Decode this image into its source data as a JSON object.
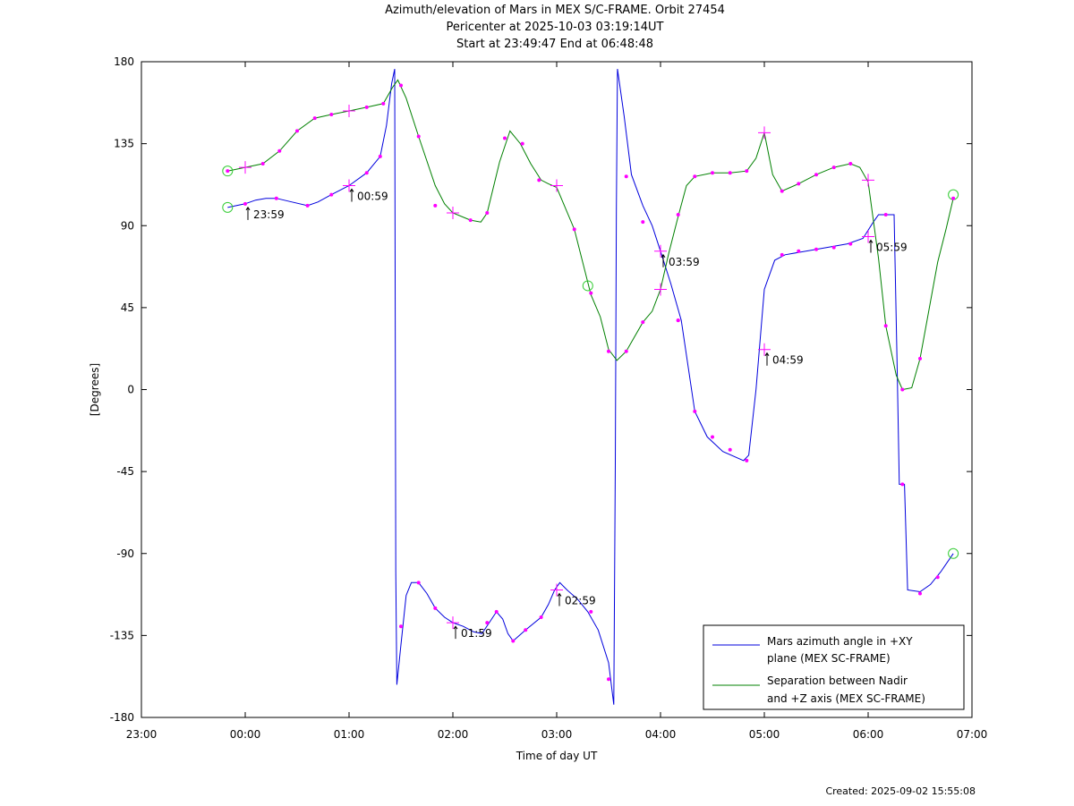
{
  "title": {
    "line1": "Azimuth/elevation of Mars in MEX S/C-FRAME.  Orbit 27454",
    "line2": "Pericenter at 2025-10-03 03:19:14UT",
    "line3": "Start at 23:49:47 End at 06:48:48"
  },
  "created": "Created: 2025-09-02 15:55:08",
  "colors": {
    "azimuth": "#0000dd",
    "separation": "#008000",
    "markers": "#ff00ff",
    "start_end": "#33cc33"
  },
  "chart_data": {
    "type": "line",
    "xlabel": "Time of day UT",
    "ylabel": "[Degrees]",
    "xlim": [
      -1.0,
      7.0
    ],
    "ylim": [
      -180,
      180
    ],
    "x_ticks": [
      {
        "v": -1,
        "label": "23:00"
      },
      {
        "v": 0,
        "label": "00:00"
      },
      {
        "v": 1,
        "label": "01:00"
      },
      {
        "v": 2,
        "label": "02:00"
      },
      {
        "v": 3,
        "label": "03:00"
      },
      {
        "v": 4,
        "label": "04:00"
      },
      {
        "v": 5,
        "label": "05:00"
      },
      {
        "v": 6,
        "label": "06:00"
      },
      {
        "v": 7,
        "label": "07:00"
      }
    ],
    "y_ticks": [
      180,
      135,
      90,
      45,
      0,
      -45,
      -90,
      -135,
      -180
    ],
    "grid": false,
    "legend_position": "bottom-right",
    "series": [
      {
        "name": "Mars azimuth angle in +XY plane (MEX SC-FRAME)",
        "legend_lines": [
          "Mars azimuth angle in +XY",
          "plane (MEX SC-FRAME)"
        ],
        "points": [
          [
            -0.17,
            100
          ],
          [
            0,
            102
          ],
          [
            0.1,
            104
          ],
          [
            0.2,
            105
          ],
          [
            0.3,
            105
          ],
          [
            0.45,
            103
          ],
          [
            0.6,
            101
          ],
          [
            0.7,
            103
          ],
          [
            0.83,
            107
          ],
          [
            1.0,
            112
          ],
          [
            1.17,
            119
          ],
          [
            1.3,
            128
          ],
          [
            1.36,
            145
          ],
          [
            1.41,
            168
          ],
          [
            1.44,
            176
          ],
          [
            1.445,
            40
          ],
          [
            1.45,
            -100
          ],
          [
            1.46,
            -162
          ],
          [
            1.5,
            -140
          ],
          [
            1.55,
            -113
          ],
          [
            1.6,
            -106
          ],
          [
            1.67,
            -106
          ],
          [
            1.75,
            -112
          ],
          [
            1.83,
            -120
          ],
          [
            1.92,
            -125
          ],
          [
            2.0,
            -128
          ],
          [
            2.1,
            -130
          ],
          [
            2.2,
            -133
          ],
          [
            2.28,
            -134
          ],
          [
            2.35,
            -128
          ],
          [
            2.42,
            -122
          ],
          [
            2.48,
            -126
          ],
          [
            2.53,
            -134
          ],
          [
            2.58,
            -138
          ],
          [
            2.7,
            -132
          ],
          [
            2.85,
            -125
          ],
          [
            2.92,
            -118
          ],
          [
            2.98,
            -110
          ],
          [
            3.03,
            -106
          ],
          [
            3.1,
            -110
          ],
          [
            3.2,
            -115
          ],
          [
            3.3,
            -122
          ],
          [
            3.4,
            -132
          ],
          [
            3.5,
            -150
          ],
          [
            3.55,
            -173
          ],
          [
            3.565,
            -40
          ],
          [
            3.575,
            100
          ],
          [
            3.585,
            176
          ],
          [
            3.65,
            150
          ],
          [
            3.72,
            118
          ],
          [
            3.83,
            101
          ],
          [
            3.92,
            90
          ],
          [
            4.0,
            76
          ],
          [
            4.1,
            58
          ],
          [
            4.2,
            38
          ],
          [
            4.33,
            -12
          ],
          [
            4.45,
            -26
          ],
          [
            4.6,
            -34
          ],
          [
            4.8,
            -39
          ],
          [
            4.85,
            -36
          ],
          [
            4.92,
            0
          ],
          [
            5.0,
            55
          ],
          [
            5.1,
            71
          ],
          [
            5.2,
            74
          ],
          [
            5.5,
            77
          ],
          [
            5.8,
            80
          ],
          [
            5.95,
            83
          ],
          [
            6.05,
            92
          ],
          [
            6.1,
            96
          ],
          [
            6.2,
            96
          ],
          [
            6.25,
            96
          ],
          [
            6.28,
            10
          ],
          [
            6.3,
            -52
          ],
          [
            6.35,
            -52
          ],
          [
            6.38,
            -110
          ],
          [
            6.5,
            -111
          ],
          [
            6.6,
            -107
          ],
          [
            6.7,
            -100
          ],
          [
            6.82,
            -90
          ]
        ],
        "markers": [
          [
            0,
            102
          ],
          [
            0.3,
            105
          ],
          [
            0.6,
            101
          ],
          [
            0.83,
            107
          ],
          [
            1.17,
            119
          ],
          [
            1.3,
            128
          ],
          [
            1.5,
            -130
          ],
          [
            1.67,
            -106
          ],
          [
            1.83,
            -120
          ],
          [
            2.33,
            -128
          ],
          [
            2.42,
            -122
          ],
          [
            2.58,
            -138
          ],
          [
            2.7,
            -132
          ],
          [
            2.85,
            -125
          ],
          [
            3.33,
            -122
          ],
          [
            3.5,
            -159
          ],
          [
            3.67,
            117
          ],
          [
            3.83,
            92
          ],
          [
            4.17,
            38
          ],
          [
            4.33,
            -12
          ],
          [
            4.5,
            -26
          ],
          [
            4.67,
            -33
          ],
          [
            4.83,
            -39
          ],
          [
            5.17,
            74
          ],
          [
            5.33,
            76
          ],
          [
            5.5,
            77
          ],
          [
            5.67,
            78
          ],
          [
            5.83,
            80
          ],
          [
            6.17,
            96
          ],
          [
            6.33,
            -52
          ],
          [
            6.5,
            -112
          ],
          [
            6.67,
            -103
          ]
        ],
        "hour_markers": [
          [
            1.0,
            112
          ],
          [
            2.0,
            -128
          ],
          [
            3.0,
            -110
          ],
          [
            4.0,
            76
          ],
          [
            5.0,
            22
          ],
          [
            6.0,
            84
          ]
        ],
        "start_end": [
          [
            -0.17,
            100
          ],
          [
            6.82,
            -90
          ]
        ],
        "annotations": [
          {
            "time": "23:59",
            "x": 0.0,
            "y": 102
          },
          {
            "time": "00:59",
            "x": 1.0,
            "y": 112
          },
          {
            "time": "01:59",
            "x": 2.0,
            "y": -128
          },
          {
            "time": "02:59",
            "x": 3.0,
            "y": -110
          },
          {
            "time": "03:59",
            "x": 4.0,
            "y": 76
          },
          {
            "time": "04:59",
            "x": 5.0,
            "y": 22
          },
          {
            "time": "05:59",
            "x": 6.0,
            "y": 84
          }
        ]
      },
      {
        "name": "Separation between Nadir and +Z axis (MEX SC-FRAME)",
        "legend_lines": [
          "Separation between Nadir",
          "and +Z axis (MEX SC-FRAME)"
        ],
        "points": [
          [
            -0.17,
            120
          ],
          [
            0,
            122
          ],
          [
            0.17,
            124
          ],
          [
            0.33,
            131
          ],
          [
            0.5,
            142
          ],
          [
            0.67,
            149
          ],
          [
            0.83,
            151
          ],
          [
            1.0,
            153
          ],
          [
            1.17,
            155
          ],
          [
            1.33,
            157
          ],
          [
            1.42,
            166
          ],
          [
            1.47,
            170
          ],
          [
            1.55,
            160
          ],
          [
            1.67,
            139
          ],
          [
            1.83,
            112
          ],
          [
            1.92,
            102
          ],
          [
            2.0,
            97
          ],
          [
            2.17,
            93
          ],
          [
            2.27,
            92
          ],
          [
            2.33,
            97
          ],
          [
            2.45,
            125
          ],
          [
            2.55,
            142
          ],
          [
            2.65,
            135
          ],
          [
            2.75,
            124
          ],
          [
            2.85,
            115
          ],
          [
            2.92,
            113
          ],
          [
            3.0,
            111
          ],
          [
            3.17,
            88
          ],
          [
            3.33,
            52
          ],
          [
            3.42,
            40
          ],
          [
            3.5,
            22
          ],
          [
            3.58,
            16
          ],
          [
            3.67,
            21
          ],
          [
            3.83,
            37
          ],
          [
            3.92,
            43
          ],
          [
            4.0,
            55
          ],
          [
            4.08,
            75
          ],
          [
            4.17,
            95
          ],
          [
            4.25,
            112
          ],
          [
            4.33,
            117
          ],
          [
            4.5,
            119
          ],
          [
            4.67,
            119
          ],
          [
            4.83,
            120
          ],
          [
            4.92,
            127
          ],
          [
            5.0,
            141
          ],
          [
            5.08,
            118
          ],
          [
            5.17,
            109
          ],
          [
            5.33,
            113
          ],
          [
            5.5,
            118
          ],
          [
            5.67,
            122
          ],
          [
            5.83,
            124
          ],
          [
            5.92,
            122
          ],
          [
            6.0,
            114
          ],
          [
            6.1,
            72
          ],
          [
            6.17,
            35
          ],
          [
            6.27,
            8
          ],
          [
            6.33,
            0
          ],
          [
            6.42,
            1
          ],
          [
            6.5,
            17
          ],
          [
            6.67,
            70
          ],
          [
            6.75,
            88
          ],
          [
            6.82,
            105
          ]
        ],
        "markers": [
          [
            -0.17,
            120
          ],
          [
            0.17,
            124
          ],
          [
            0.33,
            131
          ],
          [
            0.5,
            142
          ],
          [
            0.67,
            149
          ],
          [
            0.83,
            151
          ],
          [
            1.17,
            155
          ],
          [
            1.33,
            157
          ],
          [
            1.5,
            167
          ],
          [
            1.67,
            139
          ],
          [
            1.83,
            101
          ],
          [
            2.17,
            93
          ],
          [
            2.33,
            97
          ],
          [
            2.5,
            138
          ],
          [
            2.67,
            135
          ],
          [
            2.83,
            115
          ],
          [
            3.17,
            88
          ],
          [
            3.33,
            53
          ],
          [
            3.5,
            21
          ],
          [
            3.67,
            21
          ],
          [
            3.83,
            37
          ],
          [
            4.17,
            38
          ],
          [
            4.17,
            96
          ],
          [
            4.33,
            117
          ],
          [
            4.5,
            119
          ],
          [
            4.67,
            119
          ],
          [
            4.83,
            120
          ],
          [
            5.17,
            109
          ],
          [
            5.33,
            113
          ],
          [
            5.5,
            118
          ],
          [
            5.67,
            122
          ],
          [
            5.83,
            124
          ],
          [
            6.17,
            35
          ],
          [
            6.33,
            0
          ],
          [
            6.5,
            17
          ],
          [
            6.82,
            105
          ]
        ],
        "hour_markers": [
          [
            0,
            122
          ],
          [
            1.0,
            153
          ],
          [
            2.0,
            97
          ],
          [
            3.0,
            112
          ],
          [
            4.0,
            55
          ],
          [
            5.0,
            141
          ],
          [
            6.0,
            115
          ]
        ],
        "start_end": [
          [
            -0.17,
            120
          ],
          [
            3.3,
            57
          ],
          [
            6.82,
            107
          ]
        ]
      }
    ]
  }
}
